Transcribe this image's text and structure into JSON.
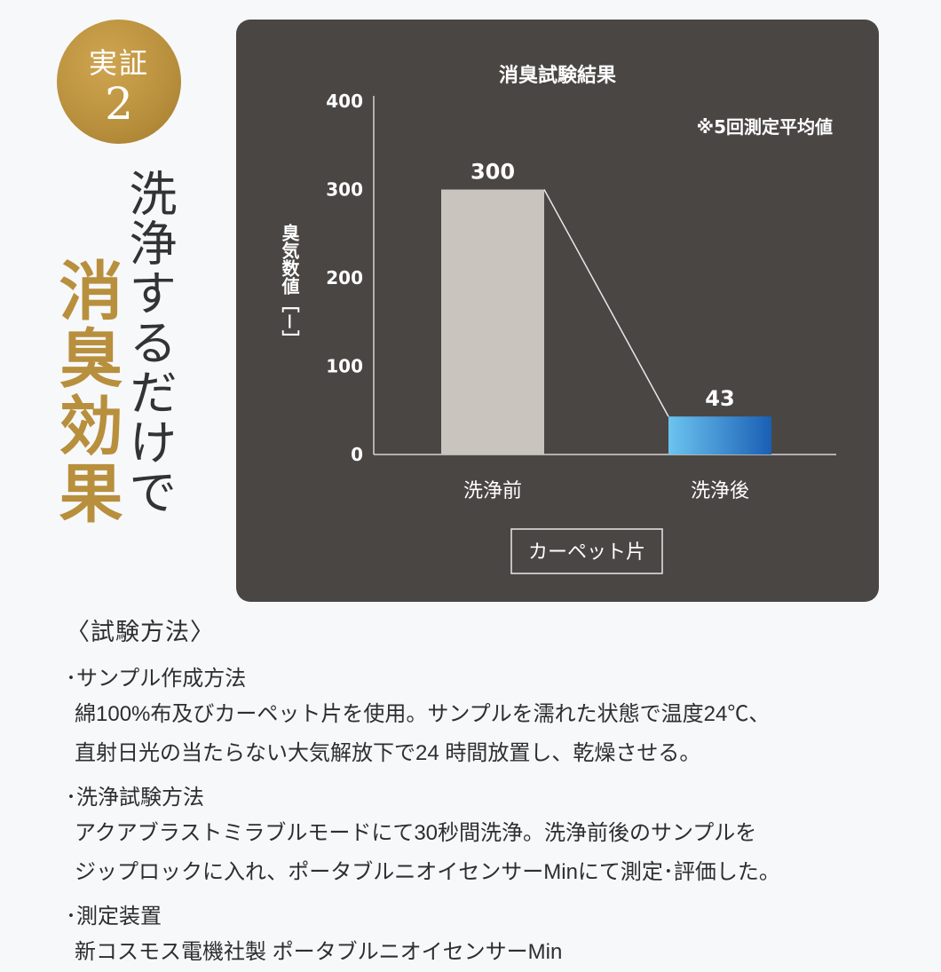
{
  "badge": {
    "line1": "実証",
    "line2": "2"
  },
  "headline": {
    "vertical_text": "洗浄するだけで",
    "highlight": "消臭効果"
  },
  "chart_data": {
    "type": "bar",
    "title": "消臭試験結果",
    "note": "※5回測定平均値",
    "ylabel": "臭気数値［－］",
    "ylim": [
      0,
      400
    ],
    "yticks": [
      "400",
      "300",
      "200",
      "100",
      "0"
    ],
    "categories": [
      "洗浄前",
      "洗浄後"
    ],
    "values": [
      300,
      43
    ],
    "value_labels": [
      "300",
      "43"
    ],
    "xgroup_label": "カーペット片",
    "colors": {
      "before": "#c9c4be",
      "after": "#1f86d6"
    }
  },
  "method": {
    "heading": "〈試験方法〉",
    "sections": [
      {
        "title": "･サンプル作成方法",
        "lines": [
          "綿100%布及びカーペット片を使用。サンプルを濡れた状態で温度24℃、",
          "直射日光の当たらない大気解放下で24 時間放置し、乾燥させる。"
        ]
      },
      {
        "title": "･洗浄試験方法",
        "lines": [
          "アクアブラストミラブルモードにて30秒間洗浄。洗浄前後のサンプルを",
          "ジップロックに入れ、ポータブルニオイセンサーMinにて測定･評価した。"
        ]
      },
      {
        "title": "･測定装置",
        "lines": [
          "新コスモス電機社製 ポータブルニオイセンサーMin"
        ]
      }
    ]
  }
}
